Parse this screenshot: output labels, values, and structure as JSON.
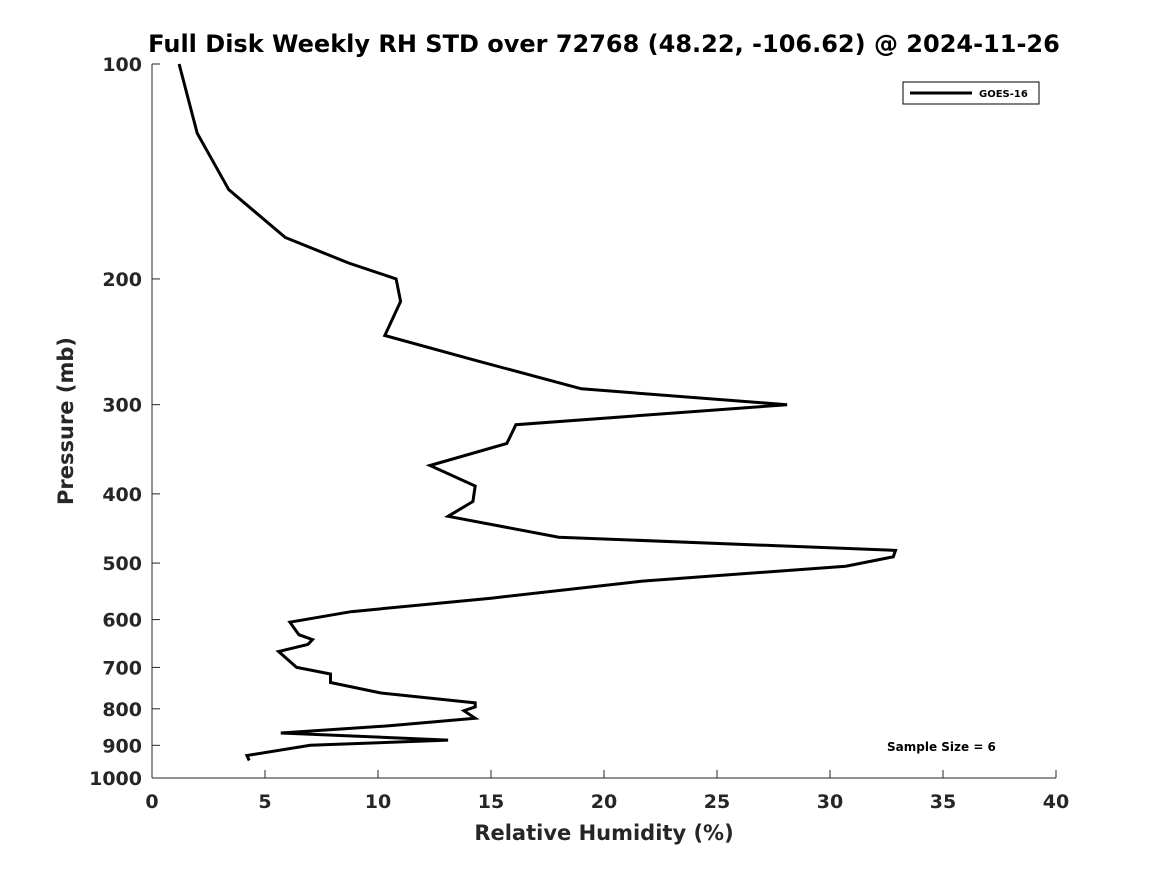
{
  "chart_data": {
    "type": "line",
    "title": "Full Disk Weekly RH STD over 72768 (48.22, -106.62) @ 2024-11-26",
    "xlabel": "Relative Humidity (%)",
    "ylabel": "Pressure (mb)",
    "xlim": [
      0,
      40
    ],
    "ylim": [
      100,
      1000
    ],
    "yscale": "log",
    "yreversed": true,
    "xticks": [
      0,
      5,
      10,
      15,
      20,
      25,
      30,
      35,
      40
    ],
    "yticks": [
      100,
      200,
      300,
      400,
      500,
      600,
      700,
      800,
      900,
      1000
    ],
    "grid": false,
    "legend": {
      "position": "top-right",
      "entries": [
        "GOES-16"
      ]
    },
    "annotation": "Sample Size = 6",
    "series": [
      {
        "name": "GOES-16",
        "color": "#000000",
        "x": [
          1.2,
          2.0,
          3.4,
          5.9,
          8.7,
          10.8,
          11.0,
          10.3,
          14.3,
          19.0,
          28.1,
          16.1,
          15.7,
          12.3,
          14.3,
          14.2,
          13.1,
          18.0,
          32.9,
          32.8,
          30.7,
          21.7,
          15.0,
          8.8,
          6.1,
          6.5,
          7.1,
          6.9,
          5.6,
          6.4,
          7.9,
          7.9,
          10.1,
          14.3,
          14.3,
          13.8,
          14.3,
          10.5,
          5.7,
          13.1,
          7.0,
          4.2,
          4.3
        ],
        "y": [
          100,
          125,
          150,
          175,
          190,
          200,
          215,
          240,
          260,
          285,
          300,
          320,
          340,
          365,
          390,
          410,
          430,
          460,
          480,
          490,
          505,
          530,
          560,
          585,
          605,
          630,
          640,
          650,
          665,
          700,
          715,
          735,
          760,
          785,
          795,
          805,
          825,
          845,
          865,
          885,
          900,
          930,
          945
        ]
      }
    ]
  }
}
